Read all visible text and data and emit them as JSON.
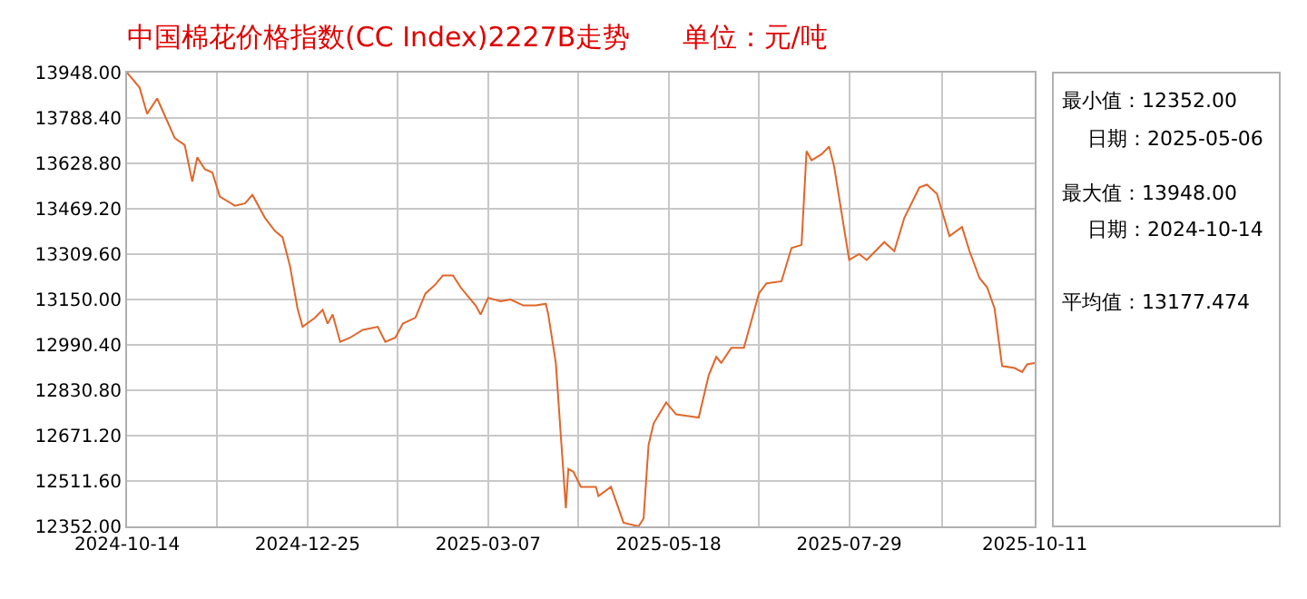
{
  "chart_data": {
    "type": "line",
    "title": "中国棉花价格指数(CC Index)2227B走势      单位：元/吨",
    "x": [
      "2024-10-14",
      "2024-10-19",
      "2024-10-22",
      "2024-10-26",
      "2024-10-30",
      "2024-11-02",
      "2024-11-06",
      "2024-11-09",
      "2024-11-11",
      "2024-11-14",
      "2024-11-17",
      "2024-11-20",
      "2024-11-26",
      "2024-11-30",
      "2024-12-03",
      "2024-12-08",
      "2024-12-12",
      "2024-12-15",
      "2024-12-18",
      "2024-12-21",
      "2024-12-23",
      "2024-12-28",
      "2024-12-31",
      "2025-01-02",
      "2025-01-04",
      "2025-01-07",
      "2025-01-11",
      "2025-01-16",
      "2025-01-22",
      "2025-01-25",
      "2025-01-29",
      "2025-02-01",
      "2025-02-06",
      "2025-02-10",
      "2025-02-14",
      "2025-02-17",
      "2025-02-21",
      "2025-02-24",
      "2025-03-02",
      "2025-03-04",
      "2025-03-07",
      "2025-03-12",
      "2025-03-16",
      "2025-03-21",
      "2025-03-26",
      "2025-03-30",
      "2025-03-31",
      "2025-04-03",
      "2025-04-05",
      "2025-04-07",
      "2025-04-08",
      "2025-04-10",
      "2025-04-13",
      "2025-04-19",
      "2025-04-20",
      "2025-04-25",
      "2025-04-30",
      "2025-05-06",
      "2025-05-08",
      "2025-05-10",
      "2025-05-12",
      "2025-05-17",
      "2025-05-21",
      "2025-05-30",
      "2025-06-03",
      "2025-06-06",
      "2025-06-08",
      "2025-06-12",
      "2025-06-17",
      "2025-06-20",
      "2025-06-23",
      "2025-06-26",
      "2025-07-02",
      "2025-07-06",
      "2025-07-10",
      "2025-07-12",
      "2025-07-14",
      "2025-07-18",
      "2025-07-21",
      "2025-07-23",
      "2025-07-29",
      "2025-08-02",
      "2025-08-05",
      "2025-08-12",
      "2025-08-16",
      "2025-08-20",
      "2025-08-26",
      "2025-08-29",
      "2025-09-02",
      "2025-09-07",
      "2025-09-12",
      "2025-09-15",
      "2025-09-19",
      "2025-09-22",
      "2025-09-25",
      "2025-09-28",
      "2025-10-03",
      "2025-10-06",
      "2025-10-08",
      "2025-10-11"
    ],
    "series": [
      {
        "color": "#e0662a",
        "values": [
          13948,
          13895,
          13803,
          13857,
          13778,
          13718,
          13693,
          13565,
          13650,
          13608,
          13597,
          13512,
          13480,
          13488,
          13518,
          13437,
          13391,
          13369,
          13267,
          13118,
          13054,
          13086,
          13114,
          13065,
          13097,
          13001,
          13016,
          13043,
          13054,
          13001,
          13016,
          13065,
          13086,
          13171,
          13203,
          13235,
          13235,
          13193,
          13129,
          13097,
          13156,
          13144,
          13150,
          13129,
          13129,
          13135,
          13097,
          12927,
          12671,
          12416,
          12554,
          12544,
          12491,
          12491,
          12459,
          12491,
          12365,
          12352,
          12380,
          12639,
          12714,
          12788,
          12746,
          12735,
          12884,
          12948,
          12927,
          12980,
          12980,
          13075,
          13171,
          13207,
          13214,
          13331,
          13342,
          13672,
          13640,
          13661,
          13688,
          13618,
          13289,
          13310,
          13289,
          13352,
          13320,
          13437,
          13544,
          13554,
          13522,
          13373,
          13405,
          13320,
          13225,
          13193,
          13118,
          12916,
          12909,
          12895,
          12922,
          12927
        ]
      }
    ],
    "xlim": [
      "2024-10-14",
      "2025-10-11"
    ],
    "xticks": [
      {
        "value": "2024-10-14",
        "label": "2024-10-14"
      },
      {
        "value": "2024-12-25",
        "label": "2024-12-25"
      },
      {
        "value": "2025-03-07",
        "label": "2025-03-07"
      },
      {
        "value": "2025-05-18",
        "label": "2025-05-18"
      },
      {
        "value": "2025-07-29",
        "label": "2025-07-29"
      },
      {
        "value": "2025-10-11",
        "label": "2025-10-11"
      }
    ],
    "ylim": [
      12352,
      13948
    ],
    "yticks": [
      {
        "value": 12352,
        "label": "12352.00"
      },
      {
        "value": 12511.6,
        "label": "12511.60"
      },
      {
        "value": 12671.2,
        "label": "12671.20"
      },
      {
        "value": 12830.8,
        "label": "12830.80"
      },
      {
        "value": 12990.4,
        "label": "12990.40"
      },
      {
        "value": 13150,
        "label": "13150.00"
      },
      {
        "value": 13309.6,
        "label": "13309.60"
      },
      {
        "value": 13469.2,
        "label": "13469.20"
      },
      {
        "value": 13628.8,
        "label": "13628.80"
      },
      {
        "value": 13788.4,
        "label": "13788.40"
      },
      {
        "value": 13948,
        "label": "13948.00"
      }
    ],
    "grid": true,
    "marker": "none",
    "line_style": "solid",
    "annotations": [
      "最小值：12352.00",
      "日期：2025-05-06",
      "最大值：13948.00",
      "日期：2024-10-14",
      "平均值：13177.474"
    ]
  }
}
